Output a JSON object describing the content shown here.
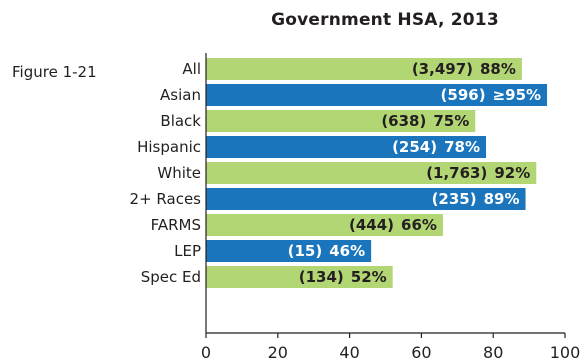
{
  "title": "Government HSA, 2013",
  "figure_label": "Figure 1-21",
  "colors": {
    "green": "#b3d675",
    "blue": "#1a75bc",
    "axis": "#231f20",
    "label_dark": "#231f20",
    "label_light": "#ffffff"
  },
  "chart_data": {
    "type": "bar",
    "orientation": "horizontal",
    "title": "Government HSA, 2013",
    "xlabel": "",
    "ylabel": "",
    "xlim": [
      0,
      100
    ],
    "x_ticks": [
      "0",
      "20",
      "40",
      "60",
      "80",
      "100"
    ],
    "grid": false,
    "categories": [
      "All",
      "Asian",
      "Black",
      "Hispanic",
      "White",
      "2+  Races",
      "FARMS",
      "LEP",
      "Spec Ed"
    ],
    "values": [
      88,
      95,
      75,
      78,
      92,
      89,
      66,
      46,
      52
    ],
    "counts": [
      "(3,497)",
      "(596)",
      "(638)",
      "(254)",
      "(1,763)",
      "(235)",
      "(444)",
      "(15)",
      "(134)"
    ],
    "percent_labels": [
      "88%",
      "≥95%",
      "75%",
      "78%",
      "92%",
      "89%",
      "66%",
      "46%",
      "52%"
    ],
    "bar_colors": [
      "green",
      "blue",
      "green",
      "blue",
      "green",
      "blue",
      "green",
      "blue",
      "green"
    ]
  }
}
